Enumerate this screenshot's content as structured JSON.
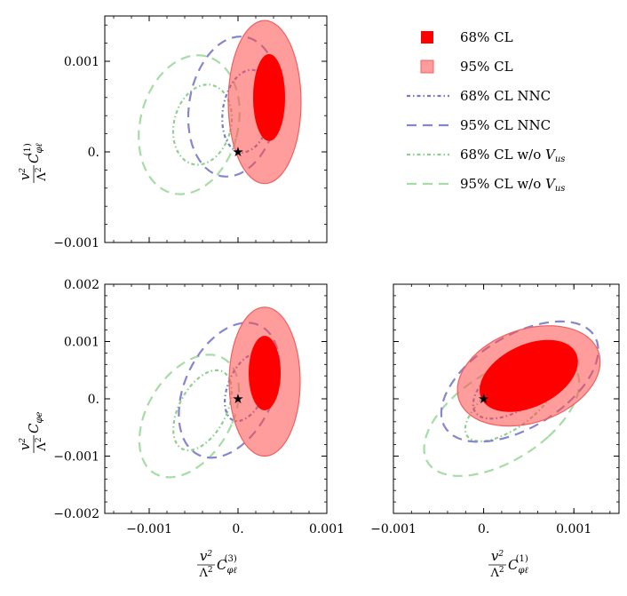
{
  "chart_data": {
    "type": "contour",
    "legend": {
      "position": "top-right",
      "entries": [
        {
          "key": "fit68",
          "label_text": "68% CL",
          "label_html": "68% CL",
          "style": "filled",
          "color": "#ff0000",
          "opacity": 1.0
        },
        {
          "key": "fit95",
          "label_text": "95% CL",
          "label_html": "95% CL",
          "style": "filled",
          "color": "#ff4a4a",
          "opacity": 0.55
        },
        {
          "key": "nnc68",
          "label_text": "68% CL NNC",
          "label_html": "68% CL NNC",
          "style": "dotdash",
          "color": "#7a7ac8"
        },
        {
          "key": "nnc95",
          "label_text": "95% CL NNC",
          "label_html": "95% CL NNC",
          "style": "dashed",
          "color": "#8686cc"
        },
        {
          "key": "novus68",
          "label_text": "68% CL w/o V_us",
          "label_html": "68% CL w/o <tspan font-style=\"italic\">V</tspan><tspan font-style=\"italic\" font-size=\"10\" dy=\"3\">us</tspan>",
          "style": "dotdash",
          "color": "#8fcf8f"
        },
        {
          "key": "novus95",
          "label_text": "95% CL w/o V_us",
          "label_html": "95% CL w/o <tspan font-style=\"italic\">V</tspan><tspan font-style=\"italic\" font-size=\"10\" dy=\"3\">us</tspan>",
          "style": "dashed",
          "color": "#a6dca6"
        }
      ]
    },
    "axis_labels": {
      "C_phi_l3": "v²/Λ² C_φℓ^(3)",
      "C_phi_l1": "v²/Λ² C_φℓ^(1)",
      "C_phi_e": "v²/Λ² C_φe"
    },
    "panels": [
      {
        "id": "top-left",
        "xaxis": "C_phi_l3",
        "yaxis": "C_phi_l1",
        "xlim": [
          -0.0015,
          0.001
        ],
        "ylim": [
          -0.001,
          0.0015
        ],
        "xticks": [],
        "yticks": [
          {
            "v": -0.001,
            "label": "−0.001"
          },
          {
            "v": 0,
            "label": "0."
          },
          {
            "v": 0.001,
            "label": "0.001"
          }
        ],
        "sm_point": [
          0,
          0
        ],
        "contours": {
          "fit95": {
            "cx": 0.0003,
            "cy": 0.00055,
            "a": 0.00041,
            "b": 0.0009,
            "angle": 0
          },
          "fit68": {
            "cx": 0.00035,
            "cy": 0.0006,
            "a": 0.00018,
            "b": 0.00048,
            "angle": 0
          },
          "nnc95": {
            "cx": -5e-05,
            "cy": 0.0005,
            "a": 0.0005,
            "b": 0.00078,
            "angle": 10
          },
          "nnc68": {
            "cx": 0.0001,
            "cy": 0.00045,
            "a": 0.00027,
            "b": 0.00046,
            "angle": 10
          },
          "novus95": {
            "cx": -0.00055,
            "cy": 0.0003,
            "a": 0.00055,
            "b": 0.00078,
            "angle": 15
          },
          "novus68": {
            "cx": -0.0004,
            "cy": 0.0003,
            "a": 0.00032,
            "b": 0.00045,
            "angle": 15
          }
        }
      },
      {
        "id": "bottom-left",
        "xaxis": "C_phi_l3",
        "yaxis": "C_phi_e",
        "xlim": [
          -0.0015,
          0.001
        ],
        "ylim": [
          -0.002,
          0.002
        ],
        "xticks": [
          {
            "v": -0.001,
            "label": "−0.001"
          },
          {
            "v": 0,
            "label": "0."
          },
          {
            "v": 0.001,
            "label": "0.001"
          }
        ],
        "yticks": [
          {
            "v": -0.002,
            "label": "−0.002"
          },
          {
            "v": -0.001,
            "label": "−0.001"
          },
          {
            "v": 0,
            "label": "0."
          },
          {
            "v": 0.001,
            "label": "0.001"
          },
          {
            "v": 0.002,
            "label": "0.002"
          }
        ],
        "sm_point": [
          0,
          0
        ],
        "contours": {
          "fit95": {
            "cx": 0.0003,
            "cy": 0.0003,
            "a": 0.0004,
            "b": 0.0013,
            "angle": 0
          },
          "fit68": {
            "cx": 0.0003,
            "cy": 0.00045,
            "a": 0.00018,
            "b": 0.00065,
            "angle": 0
          },
          "nnc95": {
            "cx": -0.0001,
            "cy": 0.00015,
            "a": 0.00052,
            "b": 0.0012,
            "angle": 12
          },
          "nnc68": {
            "cx": 0.0001,
            "cy": 0.0002,
            "a": 0.00022,
            "b": 0.0006,
            "angle": 12
          },
          "novus95": {
            "cx": -0.00055,
            "cy": -0.0003,
            "a": 0.0005,
            "b": 0.0011,
            "angle": 15
          },
          "novus68": {
            "cx": -0.0004,
            "cy": -0.0002,
            "a": 0.00028,
            "b": 0.00072,
            "angle": 15
          }
        }
      },
      {
        "id": "bottom-right",
        "xaxis": "C_phi_l1",
        "yaxis": "C_phi_e",
        "xlim": [
          -0.001,
          0.0015
        ],
        "ylim": [
          -0.002,
          0.002
        ],
        "xticks": [
          {
            "v": -0.001,
            "label": "−0.001"
          },
          {
            "v": 0,
            "label": "0."
          },
          {
            "v": 0.001,
            "label": "0.001"
          }
        ],
        "yticks": [],
        "sm_point": [
          0,
          0
        ],
        "contours": {
          "fit95": {
            "cx": 0.0005,
            "cy": 0.0004,
            "a": 0.0007,
            "b": 0.00095,
            "angle": 35
          },
          "fit68": {
            "cx": 0.0005,
            "cy": 0.0004,
            "a": 0.00045,
            "b": 0.0007,
            "angle": 35
          },
          "nnc95": {
            "cx": 0.0004,
            "cy": 0.0003,
            "a": 0.00065,
            "b": 0.0012,
            "angle": 35
          },
          "nnc68": {
            "cx": 0.0004,
            "cy": 0.0003,
            "a": 0.00035,
            "b": 0.00075,
            "angle": 35
          },
          "novus95": {
            "cx": 0.0002,
            "cy": -0.0003,
            "a": 0.00063,
            "b": 0.0012,
            "angle": 35
          },
          "novus68": {
            "cx": 0.0003,
            "cy": -0.0001,
            "a": 0.00032,
            "b": 0.00075,
            "angle": 35
          }
        }
      }
    ]
  }
}
